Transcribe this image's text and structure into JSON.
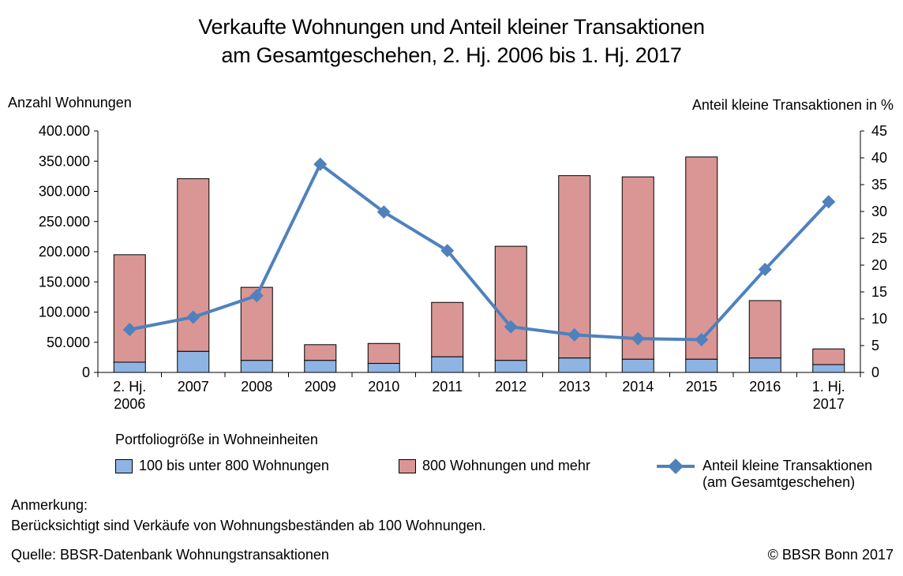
{
  "chart_data": {
    "type": "bar",
    "title_line1": "Verkaufte Wohnungen und Anteil kleiner Transaktionen",
    "title_line2": "am Gesamtgeschehen, 2. Hj. 2006 bis 1. Hj. 2017",
    "ylabel_left": "Anzahl Wohnungen",
    "ylabel_right": "Anteil kleine Transaktionen in %",
    "ylim_left": [
      0,
      400000
    ],
    "ylim_right": [
      0,
      45
    ],
    "yticks_left": [
      "0",
      "50.000",
      "100.000",
      "150.000",
      "200.000",
      "250.000",
      "300.000",
      "350.000",
      "400.000"
    ],
    "yticks_right": [
      "0",
      "5",
      "10",
      "15",
      "20",
      "25",
      "30",
      "35",
      "40",
      "45"
    ],
    "categories": [
      [
        "2. Hj.",
        "2006"
      ],
      [
        "2007"
      ],
      [
        "2008"
      ],
      [
        "2009"
      ],
      [
        "2010"
      ],
      [
        "2011"
      ],
      [
        "2012"
      ],
      [
        "2013"
      ],
      [
        "2014"
      ],
      [
        "2015"
      ],
      [
        "2016"
      ],
      [
        "1. Hj.",
        "2017"
      ]
    ],
    "series": [
      {
        "name": "100 bis unter 800 Wohnungen",
        "kind": "stacked-bar",
        "color": "#8EB4E3",
        "values": [
          17000,
          35000,
          20000,
          20000,
          15000,
          26000,
          20000,
          24000,
          22000,
          22000,
          24000,
          13000
        ]
      },
      {
        "name": "800 Wohnungen und mehr",
        "kind": "stacked-bar",
        "color": "#D99694",
        "values": [
          178000,
          286000,
          121000,
          26000,
          33000,
          90000,
          189000,
          302000,
          302000,
          335000,
          95000,
          26000
        ]
      },
      {
        "name_line1": "Anteil kleine Transaktionen",
        "name_line2": "(am Gesamtgeschehen)",
        "kind": "line",
        "axis": "right",
        "color": "#4F81BD",
        "values": [
          8.0,
          10.3,
          14.3,
          38.8,
          29.9,
          22.7,
          8.5,
          7.0,
          6.3,
          6.1,
          19.2,
          31.8
        ]
      }
    ],
    "grid": false
  },
  "legend": {
    "title": "Portfoliogröße in Wohneinheiten"
  },
  "notes": {
    "label": "Anmerkung:",
    "text": "Berücksichtigt sind Verkäufe von Wohnungsbeständen ab 100 Wohnungen."
  },
  "footer": {
    "source": "Quelle: BBSR-Datenbank Wohnungstransaktionen",
    "copyright": "© BBSR Bonn 2017"
  }
}
